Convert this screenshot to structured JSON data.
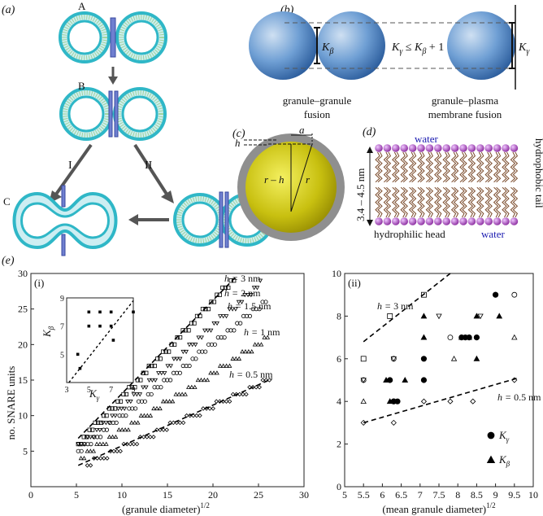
{
  "panels": {
    "a": {
      "label": "(a)",
      "stage_labels": [
        "A",
        "B",
        "C",
        "D"
      ],
      "pathway_labels": [
        "I",
        "II"
      ]
    },
    "b": {
      "label": "(b)",
      "k_beta": "K",
      "k_beta_sub": "β",
      "k_gamma": "K",
      "k_gamma_sub": "γ",
      "relation": "K",
      "relation_sub1": "γ",
      "relation_mid": " ≤ K",
      "relation_sub2": "β",
      "relation_end": " + 1",
      "caption_left_1": "granule–granule",
      "caption_left_2": "fusion",
      "caption_right_1": "granule–plasma",
      "caption_right_2": "membrane fusion"
    },
    "c": {
      "label": "(c)",
      "h": "h",
      "a": "a",
      "r_minus_h": "r – h",
      "r": "r"
    },
    "d": {
      "label": "(d)",
      "water_top": "water",
      "water_bottom": "water",
      "thickness": "3.4 – 4.5 nm",
      "tail": "hydrophobic tail",
      "head": "hydrophilic head"
    },
    "e": {
      "label": "(e)",
      "sub_i": "(i)",
      "sub_ii": "(ii)",
      "ylabel": "no. SNARE units",
      "xlabel_i": "(granule diameter)",
      "xlabel_ii": "(mean granule diameter)",
      "xlabel_sup": "1/2",
      "inset_ylabel": "K",
      "inset_ylabel_sub": "β",
      "inset_xlabel": "K",
      "inset_xlabel_sub": "γ",
      "legend_gamma": "K",
      "legend_gamma_sub": "γ",
      "legend_beta": "K",
      "legend_beta_sub": "β"
    }
  },
  "chart_data": [
    {
      "type": "scatter",
      "panel": "(e)(i)",
      "xlabel": "(granule diameter)^1/2",
      "ylabel": "no. SNARE units",
      "xlim": [
        0,
        30
      ],
      "ylim": [
        0,
        30
      ],
      "xticks": [
        0,
        5,
        10,
        15,
        20,
        25,
        30
      ],
      "yticks": [
        5,
        10,
        15,
        20,
        25,
        30
      ],
      "series": [
        {
          "name": "h = 3 nm",
          "marker": "square",
          "x_range": [
            5.2,
            22.3
          ],
          "y_range": [
            6.0,
            29.2
          ],
          "n": 56
        },
        {
          "name": "h = 2 nm",
          "marker": "down-triangle",
          "x_range": [
            5.2,
            25.2
          ],
          "y_range": [
            5.5,
            28.6
          ],
          "n": 60
        },
        {
          "name": "h = 1.5 nm",
          "marker": "circle",
          "x_range": [
            5.2,
            25.8
          ],
          "y_range": [
            5.0,
            26.0
          ],
          "n": 60
        },
        {
          "name": "h = 1 nm",
          "marker": "up-triangle",
          "x_range": [
            5.5,
            26.0
          ],
          "y_range": [
            4.2,
            20.8
          ],
          "n": 60
        },
        {
          "name": "h = 0.5 nm",
          "marker": "diamond",
          "x_range": [
            6.2,
            26.2
          ],
          "y_range": [
            3.2,
            15.0
          ],
          "n": 56
        }
      ],
      "fit_lines": [
        {
          "for": "h = 3 nm",
          "from": [
            5.2,
            6.8
          ],
          "to": [
            22.5,
            29.5
          ]
        },
        {
          "for": "h = 0.5 nm",
          "from": [
            5.2,
            3.0
          ],
          "to": [
            26.5,
            15.2
          ]
        }
      ],
      "annotations": [
        "h = 3 nm",
        "h = 2 nm",
        "h = 1.5 nm",
        "h = 1 nm",
        "h = 0.5 nm"
      ],
      "inset": {
        "xlabel": "K_γ",
        "ylabel": "K_β",
        "xlim": [
          3,
          9
        ],
        "ylim": [
          3,
          9
        ],
        "xticks": [
          3,
          5,
          7,
          9
        ],
        "yticks": [
          5,
          7,
          9
        ],
        "x": [
          4,
          4.2,
          5,
          5,
          6,
          6,
          7,
          7,
          7.2,
          9
        ],
        "y": [
          5,
          4,
          7,
          8,
          8,
          7,
          7,
          8,
          6,
          8
        ],
        "line": {
          "from": [
            3.2,
            3.0
          ],
          "to": [
            9.0,
            8.8
          ]
        }
      }
    },
    {
      "type": "scatter",
      "panel": "(e)(ii)",
      "xlabel": "(mean granule diameter)^1/2",
      "xlim": [
        5,
        10
      ],
      "ylim": [
        0,
        10
      ],
      "xticks": [
        5,
        5.5,
        6,
        6.5,
        7,
        7.5,
        8,
        8.5,
        9,
        9.5,
        10
      ],
      "yticks": [
        0,
        2,
        4,
        6,
        8,
        10
      ],
      "open_points": [
        {
          "marker": "square",
          "x": [
            5.5,
            6.2,
            7.1
          ],
          "y": [
            6,
            8,
            9
          ]
        },
        {
          "marker": "circle",
          "x": [
            5.5,
            6.3,
            7.8,
            8.5,
            9.0,
            9.5
          ],
          "y": [
            5,
            6,
            7,
            7,
            9,
            9
          ]
        },
        {
          "marker": "down-triangle",
          "x": [
            5.5,
            6.3,
            7.5,
            8.6
          ],
          "y": [
            5,
            6,
            8,
            8
          ]
        },
        {
          "marker": "up-triangle",
          "x": [
            5.5,
            6.3,
            7.1,
            7.9,
            9.5
          ],
          "y": [
            4,
            4,
            7,
            6,
            7
          ]
        },
        {
          "marker": "diamond",
          "x": [
            5.5,
            6.3,
            7.1,
            7.8,
            8.4,
            9.5
          ],
          "y": [
            3,
            3,
            4,
            4,
            4,
            5
          ]
        }
      ],
      "filled_points": [
        {
          "name": "K_γ",
          "marker": "circle",
          "x": [
            6.2,
            6.3,
            6.3,
            6.4,
            7.1,
            7.1,
            8.1,
            8.2,
            8.3,
            8.5,
            9.0
          ],
          "y": [
            5,
            4,
            4,
            4,
            6,
            5,
            7,
            7,
            7,
            7,
            9
          ]
        },
        {
          "name": "K_β",
          "marker": "up-triangle",
          "x": [
            6.1,
            6.2,
            6.6,
            7.1,
            7.1,
            8.1,
            8.3,
            8.5,
            8.5,
            9.1
          ],
          "y": [
            5,
            4,
            5,
            8,
            7,
            7,
            7,
            6,
            8,
            8
          ]
        }
      ],
      "fit_lines": [
        {
          "for": "h = 3 nm",
          "from": [
            5.5,
            6.8
          ],
          "to": [
            7.8,
            10.0
          ]
        },
        {
          "for": "h = 0.5 nm",
          "from": [
            5.5,
            3.0
          ],
          "to": [
            9.6,
            5.1
          ]
        }
      ],
      "annotations": [
        "h = 3 nm",
        "h = 0.5 nm"
      ],
      "legend": {
        "entries": [
          "K_γ",
          "K_β"
        ],
        "placement": "bottom-right"
      }
    }
  ]
}
